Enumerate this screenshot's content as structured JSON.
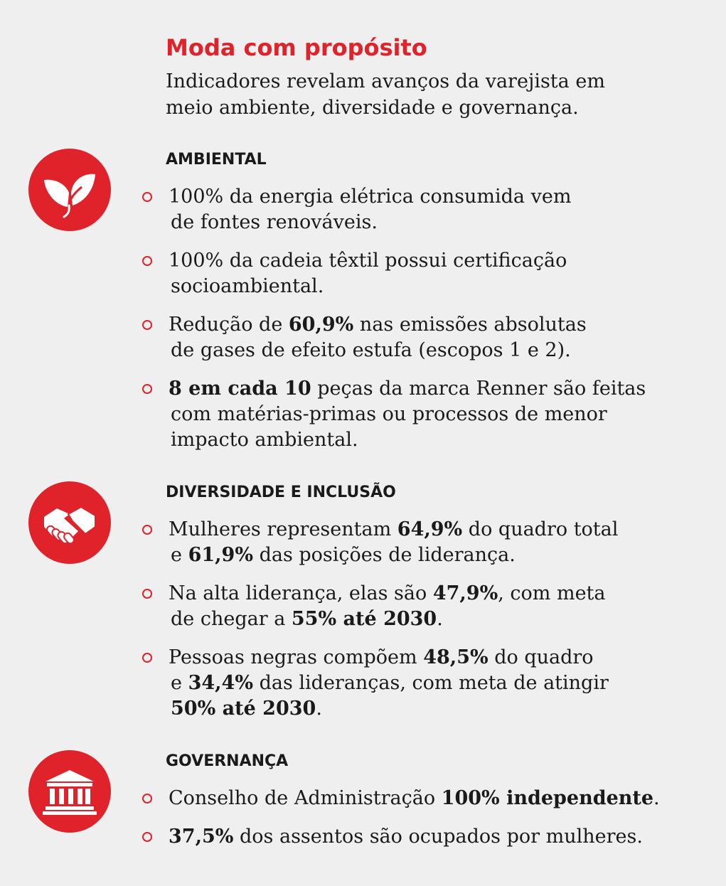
{
  "header": {
    "title": "Moda com propósito",
    "subtitle_lines": [
      "Indicadores revelam avanços da varejista em",
      "meio ambiente, diversidade e governança."
    ]
  },
  "colors": {
    "accent": "#e0232b",
    "background": "#efefef"
  },
  "sections": [
    {
      "heading": "AMBIENTAL",
      "icon": "leaf-icon",
      "items": [
        [
          [
            {
              "t": "100% da energia elétrica consumida vem"
            }
          ],
          [
            {
              "t": "de fontes renováveis."
            }
          ]
        ],
        [
          [
            {
              "t": "100% da cadeia têxtil possui certificação"
            }
          ],
          [
            {
              "t": "socioambiental."
            }
          ]
        ],
        [
          [
            {
              "t": "Redução de "
            },
            {
              "t": "60,9%",
              "b": true
            },
            {
              "t": " nas emissões absolutas"
            }
          ],
          [
            {
              "t": "de gases de efeito estufa (escopos 1 e 2)."
            }
          ]
        ],
        [
          [
            {
              "t": "8 em cada 10",
              "b": true
            },
            {
              "t": " peças da marca Renner são feitas"
            }
          ],
          [
            {
              "t": "com matérias-primas ou processos de menor"
            }
          ],
          [
            {
              "t": "impacto ambiental."
            }
          ]
        ]
      ]
    },
    {
      "heading": "DIVERSIDADE E INCLUSÃO",
      "icon": "handshake-icon",
      "items": [
        [
          [
            {
              "t": "Mulheres representam "
            },
            {
              "t": "64,9%",
              "b": true
            },
            {
              "t": " do quadro total"
            }
          ],
          [
            {
              "t": "e "
            },
            {
              "t": "61,9%",
              "b": true
            },
            {
              "t": " das posições de liderança."
            }
          ]
        ],
        [
          [
            {
              "t": "Na alta liderança, elas são "
            },
            {
              "t": "47,9%",
              "b": true
            },
            {
              "t": ", com meta"
            }
          ],
          [
            {
              "t": "de chegar a "
            },
            {
              "t": "55% até 2030",
              "b": true
            },
            {
              "t": "."
            }
          ]
        ],
        [
          [
            {
              "t": "Pessoas negras compõem "
            },
            {
              "t": "48,5%",
              "b": true
            },
            {
              "t": " do quadro"
            }
          ],
          [
            {
              "t": "e "
            },
            {
              "t": "34,4%",
              "b": true
            },
            {
              "t": " das lideranças, com meta de atingir"
            }
          ],
          [
            {
              "t": "50% até 2030",
              "b": true
            },
            {
              "t": "."
            }
          ]
        ]
      ]
    },
    {
      "heading": "GOVERNANÇA",
      "icon": "bank-icon",
      "items": [
        [
          [
            {
              "t": "Conselho de Administração "
            },
            {
              "t": "100% independente",
              "b": true
            },
            {
              "t": "."
            }
          ]
        ],
        [
          [
            {
              "t": "37,5%",
              "b": true
            },
            {
              "t": " dos assentos são ocupados por mulheres."
            }
          ]
        ]
      ]
    }
  ]
}
